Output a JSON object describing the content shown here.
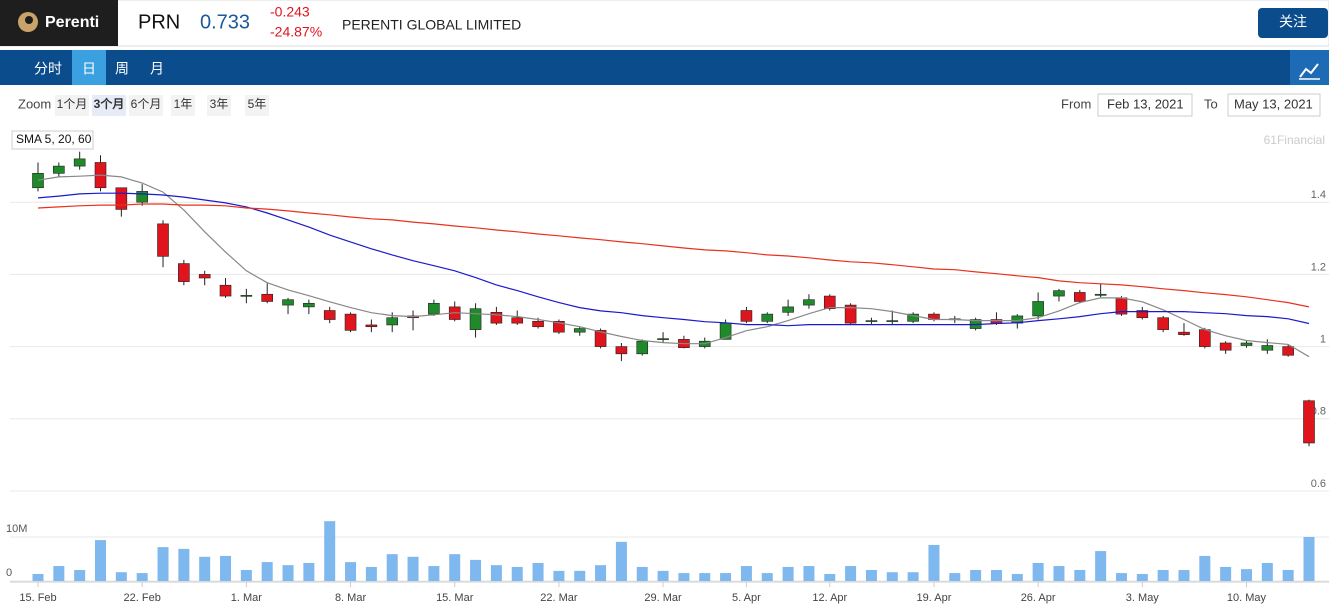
{
  "header": {
    "logo": "Perenti",
    "ticker": "PRN",
    "price": "0.733",
    "change": "-0.243",
    "change_pct": "-24.87%",
    "company": "PERENTI GLOBAL LIMITED",
    "follow": "关注"
  },
  "nav": {
    "tabs": [
      "分时",
      "日",
      "周",
      "月"
    ],
    "active": 1
  },
  "zoom": {
    "label": "Zoom",
    "options": [
      "1个月",
      "3个月",
      "6个月",
      "1年",
      "3年",
      "5年"
    ],
    "active": 1,
    "from_label": "From",
    "from": "Feb 13, 2021",
    "to_label": "To",
    "to": "May 13, 2021"
  },
  "chart_data": {
    "type": "candlestick",
    "legend": "SMA 5, 20, 60",
    "watermark": "61Financial",
    "up_color": "#1e8a2a",
    "down_color": "#e0141c",
    "grid": true,
    "categories": [
      "15. Feb",
      null,
      null,
      null,
      null,
      "22. Feb",
      null,
      null,
      null,
      null,
      "1. Mar",
      null,
      null,
      null,
      null,
      "8. Mar",
      null,
      null,
      null,
      null,
      "15. Mar",
      null,
      null,
      null,
      null,
      "22. Mar",
      null,
      null,
      null,
      null,
      "29. Mar",
      null,
      null,
      null,
      "5. Apr",
      null,
      null,
      null,
      "12. Apr",
      null,
      null,
      null,
      null,
      "19. Apr",
      null,
      null,
      null,
      null,
      "26. Apr",
      null,
      null,
      null,
      null,
      "3. May",
      null,
      null,
      null,
      null,
      "10. May",
      null,
      null,
      null
    ],
    "ohlc": [
      [
        1.44,
        1.51,
        1.43,
        1.48
      ],
      [
        1.48,
        1.51,
        1.47,
        1.5
      ],
      [
        1.5,
        1.54,
        1.49,
        1.52
      ],
      [
        1.51,
        1.53,
        1.43,
        1.44
      ],
      [
        1.44,
        1.44,
        1.36,
        1.38
      ],
      [
        1.4,
        1.45,
        1.39,
        1.43
      ],
      [
        1.34,
        1.35,
        1.22,
        1.25
      ],
      [
        1.23,
        1.24,
        1.17,
        1.18
      ],
      [
        1.2,
        1.21,
        1.17,
        1.19
      ],
      [
        1.17,
        1.19,
        1.135,
        1.14
      ],
      [
        1.14,
        1.16,
        1.12,
        1.142
      ],
      [
        1.145,
        1.175,
        1.12,
        1.125
      ],
      [
        1.115,
        1.135,
        1.09,
        1.13
      ],
      [
        1.11,
        1.13,
        1.09,
        1.12
      ],
      [
        1.1,
        1.11,
        1.065,
        1.075
      ],
      [
        1.09,
        1.095,
        1.04,
        1.045
      ],
      [
        1.06,
        1.075,
        1.04,
        1.055
      ],
      [
        1.06,
        1.095,
        1.04,
        1.08
      ],
      [
        1.085,
        1.1,
        1.045,
        1.08
      ],
      [
        1.09,
        1.13,
        1.085,
        1.12
      ],
      [
        1.11,
        1.125,
        1.07,
        1.075
      ],
      [
        1.047,
        1.12,
        1.025,
        1.105
      ],
      [
        1.095,
        1.11,
        1.06,
        1.065
      ],
      [
        1.08,
        1.1,
        1.06,
        1.065
      ],
      [
        1.07,
        1.08,
        1.05,
        1.055
      ],
      [
        1.07,
        1.075,
        1.035,
        1.04
      ],
      [
        1.04,
        1.055,
        1.03,
        1.05
      ],
      [
        1.045,
        1.05,
        0.995,
        1.0
      ],
      [
        1.0,
        1.01,
        0.96,
        0.98
      ],
      [
        0.98,
        1.02,
        0.975,
        1.015
      ],
      [
        1.02,
        1.04,
        1.01,
        1.022
      ],
      [
        1.02,
        1.03,
        0.995,
        0.997
      ],
      [
        1.0,
        1.025,
        0.995,
        1.015
      ],
      [
        1.02,
        1.075,
        1.02,
        1.065
      ],
      [
        1.1,
        1.11,
        1.065,
        1.07
      ],
      [
        1.07,
        1.095,
        1.065,
        1.09
      ],
      [
        1.095,
        1.13,
        1.085,
        1.11
      ],
      [
        1.115,
        1.145,
        1.105,
        1.13
      ],
      [
        1.14,
        1.145,
        1.1,
        1.105
      ],
      [
        1.115,
        1.12,
        1.06,
        1.065
      ],
      [
        1.07,
        1.08,
        1.06,
        1.072
      ],
      [
        1.07,
        1.1,
        1.06,
        1.072
      ],
      [
        1.07,
        1.095,
        1.065,
        1.09
      ],
      [
        1.09,
        1.095,
        1.07,
        1.075
      ],
      [
        1.075,
        1.085,
        1.065,
        1.077
      ],
      [
        1.05,
        1.08,
        1.045,
        1.075
      ],
      [
        1.075,
        1.095,
        1.06,
        1.065
      ],
      [
        1.065,
        1.09,
        1.05,
        1.085
      ],
      [
        1.085,
        1.15,
        1.075,
        1.125
      ],
      [
        1.14,
        1.16,
        1.125,
        1.155
      ],
      [
        1.15,
        1.157,
        1.12,
        1.125
      ],
      [
        1.142,
        1.175,
        1.137,
        1.145
      ],
      [
        1.135,
        1.14,
        1.085,
        1.09
      ],
      [
        1.1,
        1.11,
        1.075,
        1.08
      ],
      [
        1.08,
        1.085,
        1.04,
        1.047
      ],
      [
        1.04,
        1.065,
        1.03,
        1.033
      ],
      [
        1.047,
        1.052,
        0.995,
        1.0
      ],
      [
        1.01,
        1.015,
        0.98,
        0.99
      ],
      [
        1.003,
        1.017,
        0.997,
        1.01
      ],
      [
        0.99,
        1.02,
        0.98,
        1.003
      ],
      [
        1.0,
        1.005,
        0.972,
        0.976
      ],
      [
        0.85,
        0.853,
        0.724,
        0.733
      ]
    ],
    "series": [
      {
        "color": "#888888",
        "values": [
          1.461,
          1.47,
          1.472,
          1.475,
          1.47,
          1.453,
          1.428,
          1.378,
          1.318,
          1.262,
          1.21,
          1.177,
          1.157,
          1.141,
          1.124,
          1.108,
          1.094,
          1.086,
          1.083,
          1.088,
          1.094,
          1.091,
          1.088,
          1.083,
          1.075,
          1.066,
          1.055,
          1.041,
          1.028,
          1.017,
          1.011,
          1.008,
          1.008,
          1.025,
          1.044,
          1.055,
          1.072,
          1.091,
          1.108,
          1.108,
          1.105,
          1.097,
          1.086,
          1.075,
          1.075,
          1.072,
          1.072,
          1.072,
          1.08,
          1.099,
          1.122,
          1.135,
          1.135,
          1.124,
          1.102,
          1.075,
          1.047,
          1.03,
          1.017,
          1.011,
          1.006,
          0.972
        ]
      },
      {
        "color": "#1a1acc",
        "values": [
          1.412,
          1.417,
          1.423,
          1.425,
          1.425,
          1.423,
          1.42,
          1.414,
          1.406,
          1.398,
          1.387,
          1.37,
          1.351,
          1.331,
          1.309,
          1.29,
          1.271,
          1.254,
          1.238,
          1.224,
          1.21,
          1.191,
          1.171,
          1.155,
          1.138,
          1.122,
          1.108,
          1.099,
          1.094,
          1.086,
          1.08,
          1.075,
          1.069,
          1.066,
          1.061,
          1.061,
          1.058,
          1.061,
          1.061,
          1.061,
          1.061,
          1.061,
          1.061,
          1.061,
          1.061,
          1.061,
          1.064,
          1.066,
          1.072,
          1.077,
          1.083,
          1.091,
          1.097,
          1.097,
          1.097,
          1.097,
          1.094,
          1.091,
          1.086,
          1.083,
          1.077,
          1.064
        ]
      },
      {
        "color": "#e8321e",
        "values": [
          1.384,
          1.387,
          1.39,
          1.392,
          1.392,
          1.395,
          1.395,
          1.392,
          1.392,
          1.39,
          1.384,
          1.381,
          1.376,
          1.37,
          1.365,
          1.359,
          1.354,
          1.351,
          1.345,
          1.34,
          1.334,
          1.329,
          1.323,
          1.318,
          1.312,
          1.307,
          1.301,
          1.296,
          1.29,
          1.285,
          1.279,
          1.273,
          1.268,
          1.265,
          1.26,
          1.254,
          1.251,
          1.246,
          1.24,
          1.235,
          1.232,
          1.227,
          1.221,
          1.215,
          1.213,
          1.207,
          1.202,
          1.196,
          1.191,
          1.182,
          1.177,
          1.174,
          1.171,
          1.166,
          1.16,
          1.155,
          1.149,
          1.144,
          1.138,
          1.13,
          1.122,
          1.11
        ]
      }
    ],
    "ylim": [
      0.6,
      1.6
    ],
    "yticks": [
      0.6,
      0.8,
      1,
      1.2,
      1.4
    ],
    "volume": {
      "color": "#7fb8ee",
      "ylim": [
        0,
        20
      ],
      "yticks": [
        0,
        {
          "value": 10,
          "label": "10M"
        }
      ],
      "values": [
        1.6,
        3.4,
        2.5,
        9.3,
        2.0,
        1.8,
        7.7,
        7.3,
        5.5,
        5.7,
        2.5,
        4.3,
        3.6,
        4.1,
        13.6,
        4.3,
        3.2,
        6.1,
        5.5,
        3.4,
        6.1,
        4.8,
        3.6,
        3.2,
        4.1,
        2.3,
        2.3,
        3.6,
        8.9,
        3.2,
        2.3,
        1.8,
        1.8,
        1.8,
        3.4,
        1.8,
        3.2,
        3.4,
        1.6,
        3.4,
        2.5,
        2.0,
        2.0,
        8.2,
        1.8,
        2.5,
        2.5,
        1.6,
        4.1,
        3.4,
        2.5,
        6.8,
        1.8,
        1.6,
        2.5,
        2.5,
        5.7,
        3.2,
        2.7,
        4.1,
        2.5,
        10.0
      ]
    }
  }
}
